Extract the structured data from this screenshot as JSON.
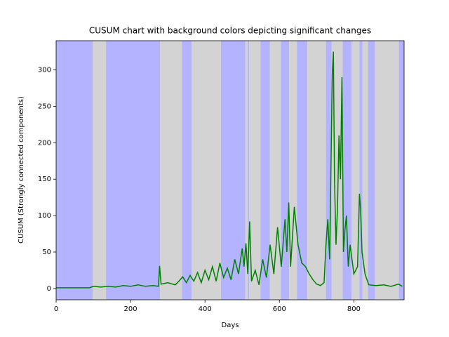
{
  "chart_data": {
    "type": "line",
    "title": "CUSUM chart with background colors depicting significant changes",
    "x_label": "Days",
    "y_label": "CUSUM (Strongly connected components)",
    "xlim": [
      0,
      935
    ],
    "ylim": [
      -15.5,
      340
    ],
    "xticks": [
      0,
      200,
      400,
      600,
      800
    ],
    "yticks": [
      0,
      50,
      100,
      150,
      200,
      250,
      300
    ],
    "spans": [
      {
        "x0": 0,
        "x1": 98,
        "color": "#b3b3ff"
      },
      {
        "x0": 98,
        "x1": 134,
        "color": "#d3d3d3"
      },
      {
        "x0": 134,
        "x1": 279,
        "color": "#b3b3ff"
      },
      {
        "x0": 279,
        "x1": 338,
        "color": "#d3d3d3"
      },
      {
        "x0": 338,
        "x1": 364,
        "color": "#b3b3ff"
      },
      {
        "x0": 364,
        "x1": 443,
        "color": "#d3d3d3"
      },
      {
        "x0": 443,
        "x1": 508,
        "color": "#b3b3ff"
      },
      {
        "x0": 508,
        "x1": 515,
        "color": "#d3d3d3"
      },
      {
        "x0": 515,
        "x1": 519,
        "color": "#b3b3ff"
      },
      {
        "x0": 519,
        "x1": 549,
        "color": "#d3d3d3"
      },
      {
        "x0": 549,
        "x1": 574,
        "color": "#b3b3ff"
      },
      {
        "x0": 574,
        "x1": 604,
        "color": "#d3d3d3"
      },
      {
        "x0": 604,
        "x1": 626,
        "color": "#b3b3ff"
      },
      {
        "x0": 626,
        "x1": 647,
        "color": "#d3d3d3"
      },
      {
        "x0": 647,
        "x1": 675,
        "color": "#b3b3ff"
      },
      {
        "x0": 675,
        "x1": 725,
        "color": "#d3d3d3"
      },
      {
        "x0": 725,
        "x1": 740,
        "color": "#b3b3ff"
      },
      {
        "x0": 740,
        "x1": 770,
        "color": "#d3d3d3"
      },
      {
        "x0": 770,
        "x1": 794,
        "color": "#b3b3ff"
      },
      {
        "x0": 794,
        "x1": 815,
        "color": "#d3d3d3"
      },
      {
        "x0": 815,
        "x1": 823,
        "color": "#b3b3ff"
      },
      {
        "x0": 823,
        "x1": 838,
        "color": "#d3d3d3"
      },
      {
        "x0": 838,
        "x1": 857,
        "color": "#b3b3ff"
      },
      {
        "x0": 857,
        "x1": 921,
        "color": "#d3d3d3"
      },
      {
        "x0": 921,
        "x1": 935,
        "color": "#b3b3ff"
      }
    ],
    "series": [
      {
        "color": "#008000",
        "x": [
          0,
          30,
          60,
          90,
          100,
          120,
          140,
          160,
          180,
          200,
          220,
          240,
          260,
          275,
          278,
          282,
          300,
          320,
          330,
          340,
          350,
          360,
          370,
          380,
          390,
          400,
          410,
          420,
          430,
          440,
          450,
          460,
          470,
          480,
          490,
          500,
          505,
          510,
          515,
          520,
          525,
          535,
          545,
          555,
          565,
          575,
          585,
          595,
          605,
          615,
          620,
          625,
          630,
          640,
          650,
          660,
          670,
          680,
          690,
          700,
          710,
          720,
          725,
          730,
          735,
          742,
          745,
          748,
          752,
          756,
          760,
          764,
          768,
          772,
          776,
          780,
          785,
          790,
          795,
          800,
          810,
          815,
          818,
          822,
          830,
          840,
          860,
          880,
          900,
          920,
          930
        ],
        "values": [
          1,
          1,
          1,
          1,
          3,
          2,
          3,
          2,
          4,
          3,
          5,
          3,
          4,
          3,
          31,
          6,
          8,
          5,
          10,
          16,
          8,
          18,
          10,
          22,
          8,
          25,
          12,
          30,
          10,
          35,
          15,
          28,
          12,
          40,
          20,
          55,
          30,
          62,
          20,
          92,
          10,
          25,
          5,
          40,
          15,
          60,
          20,
          84,
          30,
          95,
          50,
          118,
          30,
          112,
          60,
          35,
          30,
          20,
          12,
          6,
          4,
          8,
          60,
          95,
          40,
          293,
          325,
          150,
          60,
          110,
          210,
          150,
          290,
          50,
          80,
          100,
          30,
          60,
          40,
          20,
          30,
          130,
          110,
          50,
          20,
          5,
          4,
          5,
          3,
          6,
          3
        ]
      }
    ]
  }
}
